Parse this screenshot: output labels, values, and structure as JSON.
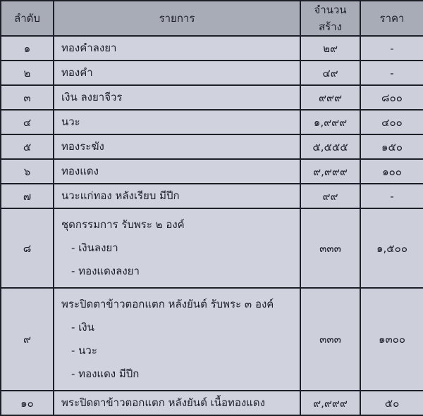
{
  "headers": [
    "ลำดับ",
    "รายการ",
    "จำนวนสร้าง",
    "ราคา"
  ],
  "rows": [
    {
      "no": "๑",
      "item": "ทองคำลงยา",
      "sub": [],
      "qty": "๒๙",
      "price": "-"
    },
    {
      "no": "๒",
      "item": "ทองคำ",
      "sub": [],
      "qty": "๔๙",
      "price": "-"
    },
    {
      "no": "๓",
      "item": "เงิน ลงยาจีวร",
      "sub": [],
      "qty": "๙๙๙",
      "price": "๘๐๐"
    },
    {
      "no": "๔",
      "item": "นวะ",
      "sub": [],
      "qty": "๑,๙๙๙",
      "price": "๔๐๐"
    },
    {
      "no": "๕",
      "item": "ทองระฆัง",
      "sub": [],
      "qty": "๕,๕๕๕",
      "price": "๑๕๐"
    },
    {
      "no": "๖",
      "item": "ทองแดง",
      "sub": [],
      "qty": "๙,๙๙๙",
      "price": "๑๐๐"
    },
    {
      "no": "๗",
      "item": "นวะแก่ทอง หลังเรียบ มีปีก",
      "sub": [],
      "qty": "๙๙",
      "price": "-"
    },
    {
      "no": "๘",
      "item": "ชุดกรรมการ รับพระ ๒ องค์",
      "sub": [
        "- เงินลงยา",
        "- ทองแดงลงยา"
      ],
      "qty": "๓๓๓",
      "price": "๑,๕๐๐"
    },
    {
      "no": "๙",
      "item": "พระปิดตาข้าวตอกแตก หลังยันต์ รับพระ ๓ องค์",
      "sub": [
        "- เงิน",
        "- นวะ",
        "- ทองแดง มีปีก"
      ],
      "qty": "๓๓๓",
      "price": "๑๓๐๐"
    },
    {
      "no": "๑๐",
      "item": "พระปิดตาข้าวตอกแตก หลังยันต์ เนื้อทองแดง",
      "sub": [],
      "qty": "๙,๙๙๙",
      "price": "๕๐"
    }
  ]
}
